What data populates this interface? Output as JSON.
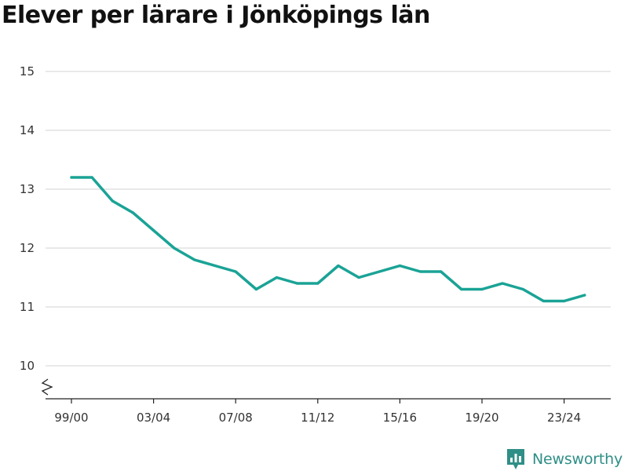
{
  "chart_data": {
    "type": "line",
    "title": "Elever per lärare i Jönköpings län",
    "xlabel": "",
    "ylabel": "",
    "ylim": [
      9.45,
      15.0
    ],
    "y_ticks": [
      10,
      11,
      12,
      13,
      14,
      15
    ],
    "x_tick_labels": [
      "99/00",
      "03/04",
      "07/08",
      "11/12",
      "15/16",
      "19/20",
      "23/24"
    ],
    "x_tick_indices": [
      0,
      4,
      8,
      12,
      16,
      20,
      24
    ],
    "axis_break": true,
    "grid": true,
    "legend": "none",
    "line_color": "#1aa396",
    "x": [
      "99/00",
      "00/01",
      "01/02",
      "02/03",
      "03/04",
      "04/05",
      "05/06",
      "06/07",
      "07/08",
      "08/09",
      "09/10",
      "10/11",
      "11/12",
      "12/13",
      "13/14",
      "14/15",
      "15/16",
      "16/17",
      "17/18",
      "18/19",
      "19/20",
      "20/21",
      "21/22",
      "22/23",
      "23/24",
      "24/25"
    ],
    "values": [
      13.2,
      13.2,
      12.8,
      12.6,
      12.3,
      12.0,
      11.8,
      11.7,
      11.6,
      11.3,
      11.5,
      11.4,
      11.4,
      11.7,
      11.5,
      11.6,
      11.7,
      11.6,
      11.6,
      11.3,
      11.3,
      11.4,
      11.3,
      11.1,
      11.1,
      11.2
    ]
  },
  "brand": {
    "name": "Newsworthy",
    "logo_icon": "bar-chart-icon",
    "color": "#2f8f87"
  }
}
